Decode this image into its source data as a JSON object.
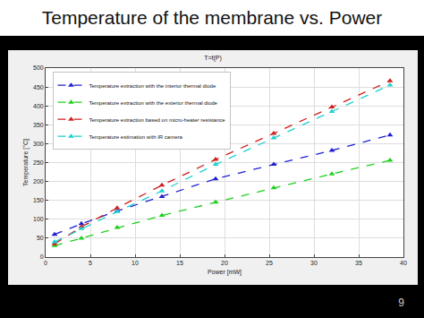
{
  "slide": {
    "title": "Temperature of the membrane vs. Power",
    "page": "9"
  },
  "chart_data": {
    "type": "line",
    "title": "T=f(P)",
    "x_label": "Power [mW]",
    "y_label": "Temperature [°C]",
    "x": [
      1,
      4,
      8,
      13,
      19,
      25.5,
      32,
      38.5
    ],
    "series": [
      {
        "name": "Temperature extraction with the interior thermal diode",
        "color": "#1f1fd0",
        "values": [
          60,
          88,
          122,
          160,
          207,
          245,
          282,
          323
        ]
      },
      {
        "name": "Temperature extraction with the exterior thermal diode",
        "color": "#1fd01f",
        "values": [
          30,
          50,
          78,
          110,
          145,
          183,
          220,
          256
        ]
      },
      {
        "name": "Temperature extraction based on micro-heater resistance",
        "color": "#d01f1f",
        "values": [
          35,
          80,
          130,
          190,
          258,
          327,
          397,
          466
        ]
      },
      {
        "name": "Temperature estimation with IR camera",
        "color": "#1fd0d0",
        "values": [
          40,
          75,
          120,
          175,
          245,
          315,
          385,
          455
        ]
      }
    ],
    "xlim": [
      0,
      40
    ],
    "xticks": [
      0,
      5,
      10,
      15,
      20,
      25,
      30,
      35,
      40
    ],
    "ylim": [
      0,
      500
    ],
    "yticks": [
      0,
      50,
      100,
      150,
      200,
      250,
      300,
      350,
      400,
      450,
      500
    ],
    "grid": true,
    "legend": "upper left",
    "marker": "triangle-up",
    "line_style": "dash"
  }
}
